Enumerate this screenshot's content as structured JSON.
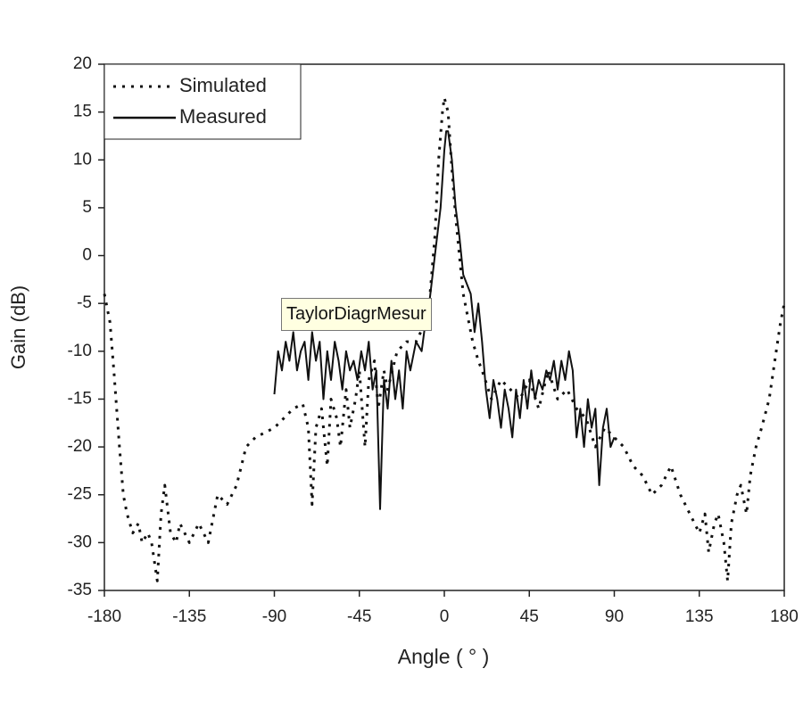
{
  "chart_data": {
    "type": "line",
    "xlabel": "Angle ( ° )",
    "ylabel": "Gain (dB)",
    "xlim": [
      -180,
      180
    ],
    "xticks": [
      -180,
      -135,
      -90,
      -45,
      0,
      45,
      90,
      135,
      180
    ],
    "ylim": [
      -35,
      20
    ],
    "yticks": [
      20,
      15,
      10,
      5,
      0,
      -5,
      -10,
      -15,
      -20,
      -25,
      -30,
      -35
    ],
    "legend": "upper left",
    "grid": false,
    "series": [
      {
        "name": "Simulated",
        "color": "#111111",
        "style": "dotted",
        "x": [
          -180,
          -177,
          -175,
          -172,
          -170,
          -168,
          -165,
          -162,
          -160,
          -157,
          -155,
          -152,
          -150,
          -148,
          -145,
          -142,
          -140,
          -135,
          -130,
          -125,
          -120,
          -115,
          -110,
          -105,
          -100,
          -95,
          -90,
          -85,
          -80,
          -75,
          -72,
          -70,
          -68,
          -65,
          -62,
          -60,
          -57,
          -55,
          -52,
          -50,
          -47,
          -45,
          -42,
          -40,
          -37,
          -35,
          -32,
          -30,
          -25,
          -20,
          -15,
          -10,
          -8,
          -5,
          -3,
          -1,
          0,
          2,
          4,
          6,
          8,
          10,
          12,
          15,
          18,
          20,
          25,
          30,
          35,
          40,
          45,
          50,
          55,
          60,
          65,
          70,
          75,
          80,
          85,
          90,
          95,
          100,
          105,
          110,
          115,
          120,
          125,
          130,
          135,
          138,
          140,
          143,
          145,
          148,
          150,
          152,
          155,
          157,
          160,
          162,
          165,
          168,
          172,
          175,
          178,
          180
        ],
        "values": [
          -4,
          -7,
          -12,
          -20,
          -25,
          -27,
          -29,
          -28,
          -30,
          -29,
          -30,
          -34,
          -27,
          -24,
          -29,
          -30,
          -28,
          -30,
          -28,
          -30,
          -25,
          -26,
          -24,
          -20,
          -19,
          -18.5,
          -18,
          -17,
          -16,
          -15.5,
          -18,
          -26,
          -18,
          -16,
          -22,
          -15,
          -17,
          -20,
          -14,
          -18,
          -15,
          -12,
          -20,
          -13,
          -11,
          -16,
          -12,
          -14,
          -10,
          -9,
          -9,
          -7,
          -5,
          2,
          10,
          15,
          16.5,
          15,
          9,
          4,
          0,
          -4,
          -6,
          -9,
          -11,
          -12,
          -15,
          -13,
          -14,
          -15,
          -13,
          -16,
          -12,
          -15,
          -14,
          -16,
          -17,
          -20,
          -18,
          -19,
          -20,
          -22,
          -23,
          -25,
          -24,
          -22,
          -25,
          -27,
          -29,
          -27,
          -31,
          -28,
          -27,
          -30,
          -34,
          -28,
          -25,
          -24,
          -27,
          -23,
          -20,
          -18,
          -15,
          -11,
          -7,
          -5
        ]
      },
      {
        "name": "Measured",
        "color": "#111111",
        "style": "solid",
        "x": [
          -90,
          -88,
          -86,
          -84,
          -82,
          -80,
          -78,
          -76,
          -74,
          -72,
          -70,
          -68,
          -66,
          -64,
          -62,
          -60,
          -58,
          -56,
          -54,
          -52,
          -50,
          -48,
          -46,
          -44,
          -42,
          -40,
          -38,
          -36,
          -34,
          -32,
          -30,
          -28,
          -26,
          -24,
          -22,
          -20,
          -18,
          -15,
          -12,
          -10,
          -8,
          -5,
          -2,
          0,
          1,
          2,
          4,
          6,
          8,
          10,
          12,
          14,
          16,
          18,
          20,
          22,
          24,
          26,
          28,
          30,
          32,
          34,
          36,
          38,
          40,
          42,
          44,
          46,
          48,
          50,
          52,
          54,
          56,
          58,
          60,
          62,
          64,
          66,
          68,
          70,
          72,
          74,
          76,
          78,
          80,
          82,
          84,
          86,
          88,
          90
        ],
        "values": [
          -14.5,
          -10,
          -12,
          -9,
          -11,
          -8,
          -12,
          -10,
          -9,
          -13,
          -8,
          -11,
          -9,
          -15,
          -10,
          -13,
          -9,
          -11,
          -14,
          -10,
          -12,
          -11,
          -13,
          -10,
          -12,
          -9,
          -14,
          -12,
          -26.5,
          -13,
          -16,
          -11,
          -15,
          -12,
          -16,
          -10,
          -12,
          -9,
          -10,
          -7,
          -5,
          0,
          5,
          11,
          13,
          13,
          10,
          5,
          2,
          -2,
          -3,
          -4,
          -8,
          -5,
          -9,
          -14,
          -17,
          -13,
          -15,
          -18,
          -14,
          -16,
          -19,
          -14,
          -17,
          -13,
          -16,
          -12,
          -15,
          -13,
          -14,
          -12,
          -13,
          -11,
          -14,
          -11,
          -13,
          -10,
          -12,
          -19,
          -16,
          -20,
          -15,
          -18,
          -16,
          -24,
          -18,
          -16,
          -20,
          -19
        ]
      }
    ]
  },
  "tooltip": "TaylorDiagrMesur"
}
